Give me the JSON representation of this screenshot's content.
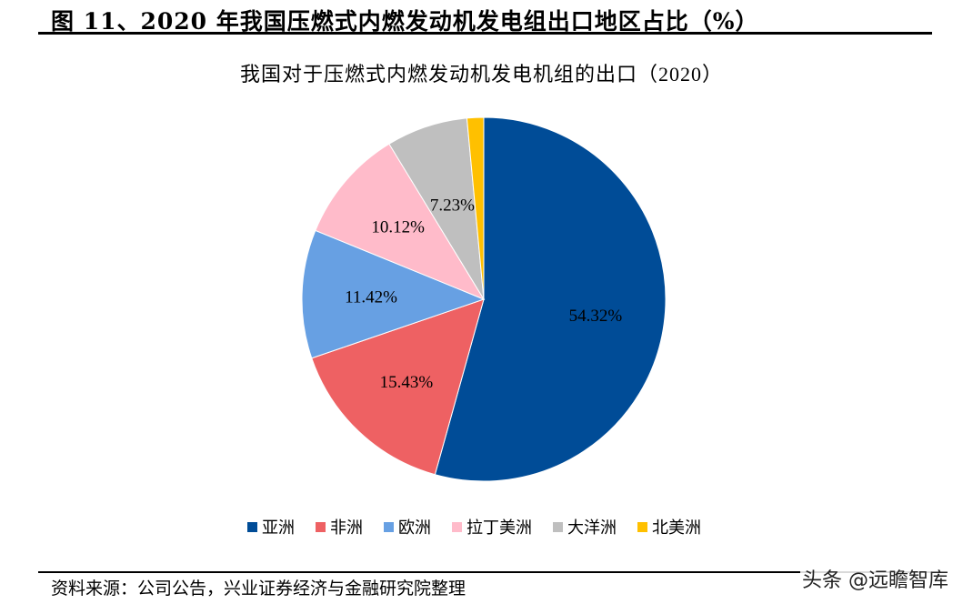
{
  "figure": {
    "title": "图 11、2020 年我国压燃式内燃发动机发电组出口地区占比（%）",
    "source": "资料来源：公司公告，兴业证券经济与金融研究院整理",
    "watermark": "头条 @远瞻智库"
  },
  "chart_data": {
    "type": "pie",
    "title": "我国对于压燃式内燃发动机发电机组的出口（2020）",
    "categories": [
      "亚洲",
      "非洲",
      "欧洲",
      "拉丁美洲",
      "大洋洲",
      "北美洲"
    ],
    "values": [
      54.32,
      15.43,
      11.42,
      10.12,
      7.23,
      1.48
    ],
    "labels": [
      "54.32%",
      "15.43%",
      "11.42%",
      "10.12%",
      "7.23%",
      ""
    ],
    "colors": [
      "#004C97",
      "#EE6163",
      "#67A0E3",
      "#FFBBCA",
      "#BFBFBF",
      "#FFC000"
    ],
    "start_angle_deg": 0,
    "direction": "clockwise",
    "legend_position": "bottom"
  },
  "legend": {
    "items": [
      {
        "label": "亚洲",
        "color": "#004C97"
      },
      {
        "label": "非洲",
        "color": "#EE6163"
      },
      {
        "label": "欧洲",
        "color": "#67A0E3"
      },
      {
        "label": "拉丁美洲",
        "color": "#FFBBCA"
      },
      {
        "label": "大洋洲",
        "color": "#BFBFBF"
      },
      {
        "label": "北美洲",
        "color": "#FFC000"
      }
    ]
  }
}
